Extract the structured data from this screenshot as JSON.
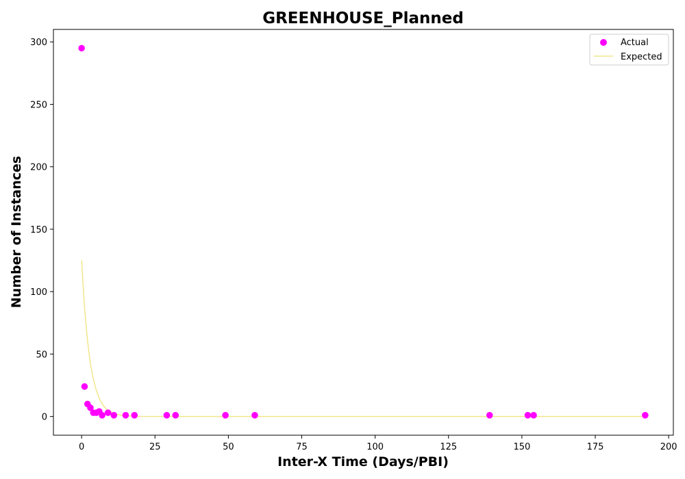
{
  "chart_data": {
    "type": "scatter",
    "title": "GREENHOUSE_Planned",
    "xlabel": "Inter-X Time (Days/PBI)",
    "ylabel": "Number of Instances",
    "xlim": [
      -9.6,
      201.6
    ],
    "ylim": [
      -15,
      310
    ],
    "xticks": [
      0,
      25,
      50,
      75,
      100,
      125,
      150,
      175,
      200
    ],
    "yticks": [
      0,
      50,
      100,
      150,
      200,
      250,
      300
    ],
    "grid": false,
    "legend_position": "top-right",
    "series": [
      {
        "name": "Actual",
        "kind": "scatter",
        "color": "#ff00ff",
        "points": [
          [
            0,
            295
          ],
          [
            1,
            24
          ],
          [
            2,
            10
          ],
          [
            3,
            7
          ],
          [
            4,
            3
          ],
          [
            5,
            3
          ],
          [
            6,
            4
          ],
          [
            7,
            1
          ],
          [
            9,
            3
          ],
          [
            11,
            1
          ],
          [
            15,
            1
          ],
          [
            18,
            1
          ],
          [
            29,
            1
          ],
          [
            32,
            1
          ],
          [
            49,
            1
          ],
          [
            59,
            1
          ],
          [
            139,
            1
          ],
          [
            152,
            1
          ],
          [
            154,
            1
          ],
          [
            192,
            1
          ]
        ]
      },
      {
        "name": "Expected",
        "kind": "line",
        "color": "#f0e68c",
        "points": [
          [
            0,
            125
          ],
          [
            1,
            87
          ],
          [
            2,
            61
          ],
          [
            3,
            42
          ],
          [
            4,
            30
          ],
          [
            5,
            21
          ],
          [
            6,
            14.5
          ],
          [
            7,
            10
          ],
          [
            8,
            7
          ],
          [
            9,
            5
          ],
          [
            10,
            3.5
          ],
          [
            12,
            1.7
          ],
          [
            14,
            0.8
          ],
          [
            16,
            0.4
          ],
          [
            20,
            0.1
          ],
          [
            25,
            0
          ],
          [
            50,
            0
          ],
          [
            100,
            0
          ],
          [
            150,
            0
          ],
          [
            192,
            0
          ]
        ]
      }
    ]
  }
}
